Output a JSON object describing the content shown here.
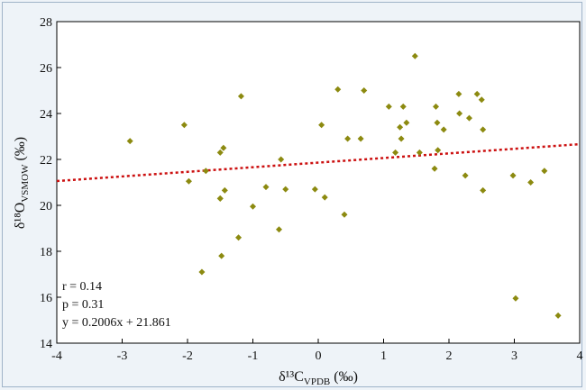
{
  "chart_data": {
    "type": "scatter",
    "title": "",
    "xlabel": {
      "main": "δ¹³C",
      "sub": "VPDB",
      "unit": "(‰)"
    },
    "ylabel": {
      "main": "δ¹⁸O",
      "sub": "VSMOW",
      "unit": "(‰)"
    },
    "xlim": [
      -4,
      4
    ],
    "ylim": [
      14,
      28
    ],
    "xticks": [
      -4,
      -3,
      -2,
      -1,
      0,
      1,
      2,
      3,
      4
    ],
    "yticks": [
      14,
      16,
      18,
      20,
      22,
      24,
      26,
      28
    ],
    "grid": false,
    "marker_color": "#8c8a10",
    "trend_color": "#cc1111",
    "trendline": {
      "slope": 0.2006,
      "intercept": 21.861
    },
    "stats": [
      "r = 0.14",
      "p = 0.31",
      "y = 0.2006x + 21.861"
    ],
    "x": [
      -2.88,
      -2.05,
      -1.98,
      -1.72,
      -1.78,
      -1.5,
      -1.5,
      -1.45,
      -1.43,
      -1.48,
      -1.5,
      -1.22,
      -1.18,
      -1.0,
      -0.8,
      -0.6,
      -0.57,
      -0.5,
      -0.05,
      0.05,
      0.1,
      0.3,
      0.4,
      0.45,
      0.65,
      0.7,
      1.08,
      1.18,
      1.25,
      1.27,
      1.3,
      1.35,
      1.48,
      1.55,
      1.78,
      1.8,
      1.82,
      1.83,
      1.92,
      2.15,
      2.16,
      2.25,
      2.31,
      2.43,
      2.5,
      2.52,
      2.52,
      2.98,
      3.02,
      3.25,
      3.46,
      3.67
    ],
    "y": [
      22.8,
      23.5,
      21.05,
      21.5,
      17.1,
      22.3,
      20.3,
      22.5,
      20.65,
      17.8,
      20.3,
      18.6,
      24.75,
      19.95,
      20.8,
      18.95,
      22.0,
      20.7,
      20.7,
      23.5,
      20.35,
      25.05,
      19.6,
      22.9,
      22.9,
      25.0,
      24.3,
      22.3,
      23.4,
      22.9,
      24.3,
      23.6,
      26.5,
      22.3,
      21.6,
      24.3,
      23.6,
      22.4,
      23.3,
      24.85,
      24.0,
      21.3,
      23.8,
      24.85,
      24.6,
      23.3,
      20.65,
      21.3,
      15.95,
      21.0,
      21.5,
      15.2
    ]
  }
}
